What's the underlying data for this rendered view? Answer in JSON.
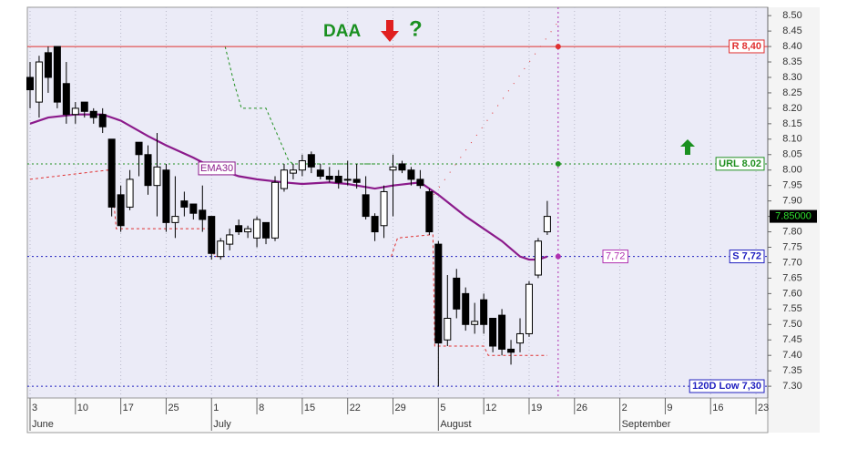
{
  "chart_data": {
    "type": "candlestick",
    "title": "DAA",
    "xlim": [
      -0.3,
      81.3
    ],
    "ylim": [
      7.262,
      8.527
    ],
    "xticks": [
      {
        "value": 0,
        "label": "3"
      },
      {
        "value": 5,
        "label": "10"
      },
      {
        "value": 10,
        "label": "17"
      },
      {
        "value": 15,
        "label": "25"
      },
      {
        "value": 20,
        "label": "1"
      },
      {
        "value": 25,
        "label": "8"
      },
      {
        "value": 30,
        "label": "15"
      },
      {
        "value": 35,
        "label": "22"
      },
      {
        "value": 40,
        "label": "29"
      },
      {
        "value": 45,
        "label": "5"
      },
      {
        "value": 50,
        "label": "12"
      },
      {
        "value": 55,
        "label": "19"
      },
      {
        "value": 60,
        "label": "26"
      },
      {
        "value": 65,
        "label": "2"
      },
      {
        "value": 70,
        "label": "9"
      },
      {
        "value": 75,
        "label": "16"
      },
      {
        "value": 80,
        "label": "23"
      }
    ],
    "months": [
      {
        "value": 0,
        "label": "June"
      },
      {
        "value": 20,
        "label": "July"
      },
      {
        "value": 45,
        "label": "August"
      },
      {
        "value": 65,
        "label": "September"
      }
    ],
    "yticks": [
      {
        "value": 8.5,
        "label": "8.50"
      },
      {
        "value": 8.45,
        "label": "8.45"
      },
      {
        "value": 8.4,
        "label": "8.40"
      },
      {
        "value": 8.35,
        "label": "8.35"
      },
      {
        "value": 8.3,
        "label": "8.30"
      },
      {
        "value": 8.25,
        "label": "8.25"
      },
      {
        "value": 8.2,
        "label": "8.20"
      },
      {
        "value": 8.15,
        "label": "8.15"
      },
      {
        "value": 8.1,
        "label": "8.10"
      },
      {
        "value": 8.05,
        "label": "8.05"
      },
      {
        "value": 8.0,
        "label": "8.00"
      },
      {
        "value": 7.95,
        "label": "7.95"
      },
      {
        "value": 7.9,
        "label": "7.90"
      },
      {
        "value": 7.85,
        "label": "7.85"
      },
      {
        "value": 7.8,
        "label": "7.80"
      },
      {
        "value": 7.75,
        "label": "7.75"
      },
      {
        "value": 7.7,
        "label": "7.70"
      },
      {
        "value": 7.65,
        "label": "7.65"
      },
      {
        "value": 7.6,
        "label": "7.60"
      },
      {
        "value": 7.55,
        "label": "7.55"
      },
      {
        "value": 7.5,
        "label": "7.50"
      },
      {
        "value": 7.45,
        "label": "7.45"
      },
      {
        "value": 7.4,
        "label": "7.40"
      },
      {
        "value": 7.35,
        "label": "7.35"
      },
      {
        "value": 7.3,
        "label": "7.30"
      }
    ],
    "grid": true,
    "x": [
      0,
      1,
      2,
      3,
      4,
      5,
      6,
      7,
      8,
      9,
      10,
      11,
      12,
      13,
      14,
      15,
      16,
      17,
      18,
      19,
      20,
      21,
      22,
      23,
      24,
      25,
      26,
      27,
      28,
      29,
      30,
      31,
      32,
      33,
      34,
      35,
      36,
      37,
      38,
      39,
      40,
      41,
      42,
      43,
      44,
      45,
      46,
      47,
      48,
      49,
      50,
      51,
      52,
      53,
      54,
      55,
      56,
      57
    ],
    "open": [
      8.3,
      8.22,
      8.38,
      8.4,
      8.28,
      8.18,
      8.22,
      8.19,
      8.18,
      8.1,
      7.92,
      7.88,
      8.09,
      8.05,
      7.95,
      8.0,
      7.83,
      7.9,
      7.89,
      7.87,
      7.85,
      7.72,
      7.76,
      7.82,
      7.8,
      7.78,
      7.83,
      7.78,
      7.94,
      7.99,
      8.0,
      8.05,
      8.0,
      7.98,
      7.98,
      7.97,
      7.97,
      7.92,
      7.85,
      7.82,
      8.0,
      8.02,
      8.0,
      7.97,
      7.93,
      7.76,
      7.45,
      7.65,
      7.6,
      7.5,
      7.58,
      7.52,
      7.53,
      7.42,
      7.44,
      7.47,
      7.66,
      7.8
    ],
    "high": [
      8.35,
      8.37,
      8.4,
      8.4,
      8.35,
      8.22,
      8.22,
      8.2,
      8.2,
      8.1,
      7.95,
      8.0,
      8.09,
      8.08,
      8.12,
      8.02,
      7.98,
      7.93,
      7.89,
      7.95,
      7.85,
      7.78,
      7.81,
      7.84,
      7.82,
      7.85,
      7.83,
      7.98,
      8.02,
      8.02,
      8.05,
      8.06,
      8.02,
      8.01,
      8.0,
      8.03,
      8.02,
      7.98,
      7.86,
      7.95,
      8.05,
      8.03,
      8.01,
      8.0,
      7.94,
      7.77,
      7.66,
      7.68,
      7.62,
      7.57,
      7.6,
      7.52,
      7.55,
      7.45,
      7.52,
      7.64,
      7.78,
      7.9
    ],
    "low": [
      8.2,
      8.17,
      8.25,
      8.2,
      8.15,
      8.15,
      8.17,
      8.15,
      8.12,
      7.85,
      7.8,
      7.87,
      7.98,
      7.92,
      7.85,
      7.8,
      7.78,
      7.85,
      7.84,
      7.8,
      7.71,
      7.71,
      7.74,
      7.79,
      7.78,
      7.75,
      7.76,
      7.77,
      7.93,
      7.97,
      7.98,
      7.99,
      7.97,
      7.96,
      7.94,
      7.95,
      7.94,
      7.84,
      7.77,
      7.78,
      7.85,
      7.99,
      7.95,
      7.94,
      7.79,
      7.3,
      7.43,
      7.52,
      7.48,
      7.47,
      7.47,
      7.41,
      7.4,
      7.37,
      7.41,
      7.46,
      7.65,
      7.79
    ],
    "close": [
      8.26,
      8.35,
      8.3,
      8.22,
      8.18,
      8.2,
      8.19,
      8.17,
      8.14,
      7.88,
      7.82,
      7.97,
      8.05,
      7.95,
      8.01,
      7.83,
      7.85,
      7.88,
      7.86,
      7.84,
      7.73,
      7.77,
      7.79,
      7.8,
      7.81,
      7.84,
      7.78,
      7.96,
      8.0,
      8.0,
      8.03,
      8.01,
      7.98,
      7.97,
      7.96,
      7.97,
      7.96,
      7.85,
      7.8,
      7.93,
      8.01,
      8.0,
      7.97,
      7.95,
      7.8,
      7.44,
      7.52,
      7.55,
      7.5,
      7.51,
      7.5,
      7.43,
      7.42,
      7.41,
      7.47,
      7.63,
      7.77,
      7.85
    ],
    "ema": {
      "name": "EMA30",
      "color": "#8b1a8b",
      "x": [
        0,
        2,
        5,
        8,
        10,
        13,
        15,
        18,
        20,
        23,
        25,
        28,
        30,
        33,
        35,
        38,
        40,
        43,
        45,
        48,
        50,
        52,
        53,
        54,
        55,
        56,
        57
      ],
      "values": [
        8.15,
        8.17,
        8.18,
        8.18,
        8.16,
        8.11,
        8.08,
        8.04,
        8.01,
        7.98,
        7.97,
        7.96,
        7.955,
        7.96,
        7.955,
        7.94,
        7.95,
        7.96,
        7.92,
        7.85,
        7.81,
        7.77,
        7.745,
        7.72,
        7.71,
        7.71,
        7.72
      ]
    },
    "stops": [
      {
        "color": "#e03030",
        "dash": "3,3",
        "x": [
          0,
          8.6,
          9,
          9.5,
          20,
          20.3,
          21.3
        ],
        "values": [
          7.97,
          8.0,
          7.97,
          7.81,
          7.81,
          7.72,
          7.72
        ]
      },
      {
        "color": "#209020",
        "dash": "3,3",
        "x": [
          21.5,
          22.5,
          23.3,
          26,
          28.5,
          29,
          39
        ],
        "values": [
          8.4,
          8.28,
          8.2,
          8.2,
          8.03,
          8.02,
          8.02
        ]
      },
      {
        "color": "#e03030",
        "dash": "3,3",
        "x": [
          39.8,
          40.5,
          44,
          44.4,
          44.6,
          50,
          50.5,
          57
        ],
        "values": [
          7.72,
          7.78,
          7.79,
          7.79,
          7.43,
          7.43,
          7.4,
          7.4
        ]
      },
      {
        "color": "#e03030",
        "dash": "1,9",
        "x": [
          44.5,
          58.2
        ],
        "values": [
          7.92,
          8.48
        ]
      }
    ],
    "levels": [
      {
        "value": 8.4,
        "label": "R 8,40",
        "color": "#e03030",
        "dash": "none"
      },
      {
        "value": 8.02,
        "label": "URL 8.02",
        "color": "#209020",
        "dash": "2,3"
      },
      {
        "value": 7.72,
        "label": "S 7,72",
        "color": "#2020c0",
        "dash": "2,3"
      },
      {
        "value": 7.3,
        "label": "120D Low 7,30",
        "color": "#2020c0",
        "dash": "2,3"
      }
    ],
    "cursor": {
      "x": 58.2,
      "color": "#b030b0"
    },
    "ema_label": "EMA30",
    "cursor_label": {
      "value": 7.72,
      "label": "7,72"
    },
    "question": "?",
    "last_price": {
      "value": 7.85,
      "label": "7.85000"
    }
  }
}
